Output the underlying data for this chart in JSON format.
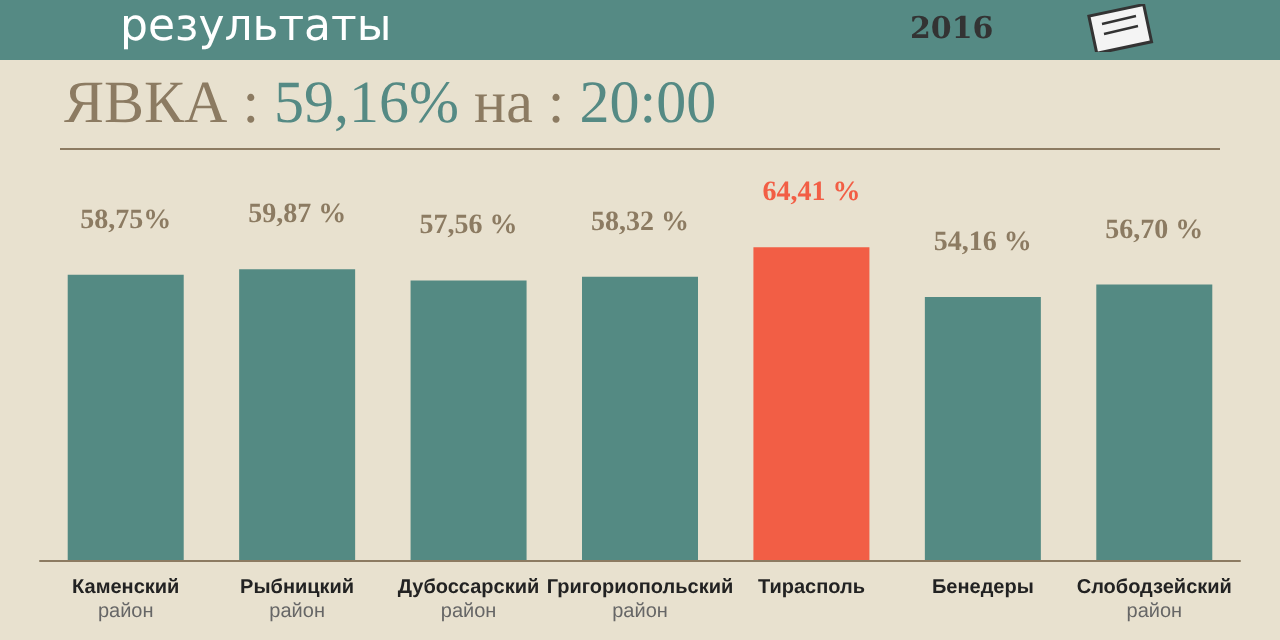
{
  "chart_data": {
    "type": "bar",
    "title": "результаты",
    "subtitle": "ЯВКА : 59,16% на : 20:00",
    "annotations": [
      "2016"
    ],
    "categories": [
      "Каменский\nрайон",
      "Рыбницкий\nрайон",
      "Дубоссарский\nрайон",
      "Григориопольский\nрайон",
      "Тирасполь",
      "Бенедеры",
      "Слободзейский\nрайон"
    ],
    "values": [
      58.75,
      59.87,
      57.56,
      58.32,
      64.41,
      54.16,
      56.7
    ],
    "value_labels": [
      "58,75%",
      "59,87 %",
      "57,56 %",
      "58,32 %",
      "64,41 %",
      "54,16 %",
      "56,70 %"
    ],
    "colors": [
      "#548a83",
      "#548a83",
      "#548a83",
      "#548a83",
      "#f25e45",
      "#548a83",
      "#548a83"
    ],
    "legend": false
  }
}
